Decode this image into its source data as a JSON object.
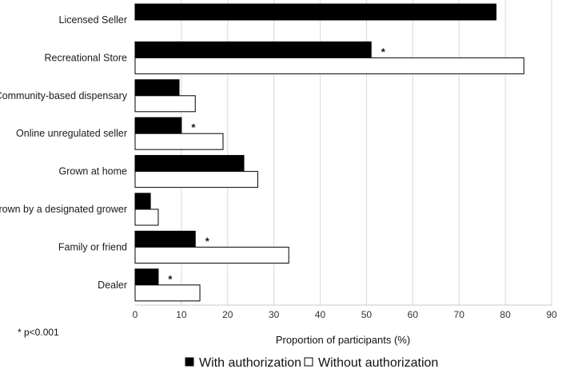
{
  "chart_data": {
    "type": "bar",
    "orientation": "horizontal",
    "categories": [
      "Licensed Seller",
      "Recreational Store",
      "Community-based dispensary",
      "Online unregulated seller",
      "Grown at home",
      "Grown by a designated grower",
      "Family or friend",
      "Dealer"
    ],
    "series": [
      {
        "name": "With authorization",
        "color": "#000000",
        "values": [
          78,
          51,
          9.5,
          10,
          23.5,
          3.3,
          13,
          5
        ]
      },
      {
        "name": "Without authorization",
        "color": "#ffffff",
        "values": [
          null,
          84,
          13,
          19,
          26.5,
          5,
          33.2,
          14
        ]
      }
    ],
    "significant": [
      false,
      true,
      false,
      true,
      false,
      false,
      true,
      true
    ],
    "significance_marker": "*",
    "xlabel": "Proportion of participants (%)",
    "xlim": [
      0,
      90
    ],
    "xticks": [
      0,
      10,
      20,
      30,
      40,
      50,
      60,
      70,
      80,
      90
    ],
    "grid": "vertical",
    "legend_position": "bottom",
    "footnote": "* p<0.001"
  }
}
